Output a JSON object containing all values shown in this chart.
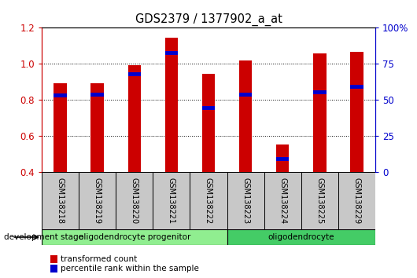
{
  "title": "GDS2379 / 1377902_a_at",
  "samples": [
    "GSM138218",
    "GSM138219",
    "GSM138220",
    "GSM138221",
    "GSM138222",
    "GSM138223",
    "GSM138224",
    "GSM138225",
    "GSM138229"
  ],
  "transformed_count": [
    0.895,
    0.893,
    0.995,
    1.145,
    0.945,
    1.02,
    0.555,
    1.06,
    1.065
  ],
  "percentile_rank": [
    0.825,
    0.832,
    0.943,
    1.06,
    0.757,
    0.832,
    0.472,
    0.843,
    0.872
  ],
  "bar_color": "#cc0000",
  "blue_color": "#0000cc",
  "y_min": 0.4,
  "y_max": 1.2,
  "y_ticks_left": [
    0.4,
    0.6,
    0.8,
    1.0,
    1.2
  ],
  "y_ticks_right_vals": [
    0,
    25,
    50,
    75,
    100
  ],
  "y_ticks_right_pos": [
    0.4,
    0.6,
    0.8,
    1.0,
    1.2
  ],
  "group1_label": "oligodendrocyte progenitor",
  "group2_label": "oligodendrocyte",
  "group1_samples": 5,
  "group2_samples": 4,
  "group1_color": "#90ee90",
  "group2_color": "#44cc66",
  "stage_label": "development stage",
  "legend_red": "transformed count",
  "legend_blue": "percentile rank within the sample",
  "bar_width": 0.35,
  "tick_area_color": "#c8c8c8",
  "title_color": "#000000",
  "right_axis_color": "#0000cc",
  "blue_bar_height": 0.022,
  "blue_bar_width": 0.35
}
